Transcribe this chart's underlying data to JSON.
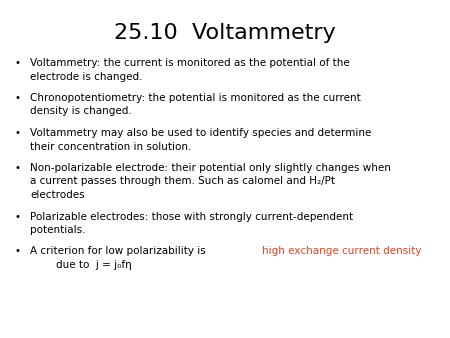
{
  "title": "25.10  Voltammetry",
  "title_fontsize": 16,
  "title_color": "#000000",
  "background_color": "#ffffff",
  "bullet_color": "#000000",
  "text_fontsize": 7.5,
  "red_color": "#e8401c",
  "bullets": [
    {
      "lines": [
        [
          {
            "text": "Voltammetry: the current is monitored as the potential of the",
            "color": "#000000"
          }
        ],
        [
          {
            "text": "electrode is changed.",
            "color": "#000000"
          }
        ]
      ]
    },
    {
      "lines": [
        [
          {
            "text": "Chronopotentiometry: the potential is monitored as the current",
            "color": "#000000"
          }
        ],
        [
          {
            "text": "density is changed.",
            "color": "#000000"
          }
        ]
      ]
    },
    {
      "lines": [
        [
          {
            "text": "Voltammetry may also be used to identify species and determine",
            "color": "#000000"
          }
        ],
        [
          {
            "text": "their concentration in solution.",
            "color": "#000000"
          }
        ]
      ]
    },
    {
      "lines": [
        [
          {
            "text": "Non-polarizable electrode: their potential only slightly changes when",
            "color": "#000000"
          }
        ],
        [
          {
            "text": "a current passes through them. Such as calomel and H₂/Pt",
            "color": "#000000"
          }
        ],
        [
          {
            "text": "electrodes",
            "color": "#000000"
          }
        ]
      ]
    },
    {
      "lines": [
        [
          {
            "text": "Polarizable electrodes: those with strongly current-dependent",
            "color": "#000000"
          }
        ],
        [
          {
            "text": "potentials.",
            "color": "#000000"
          }
        ]
      ]
    },
    {
      "lines": [
        [
          {
            "text": "A criterion for low polarizability is ",
            "color": "#000000"
          },
          {
            "text": "high exchange current density",
            "color": "#e8401c"
          }
        ],
        [
          {
            "text": "        due to  j = j₀fη",
            "color": "#000000"
          }
        ]
      ]
    }
  ]
}
